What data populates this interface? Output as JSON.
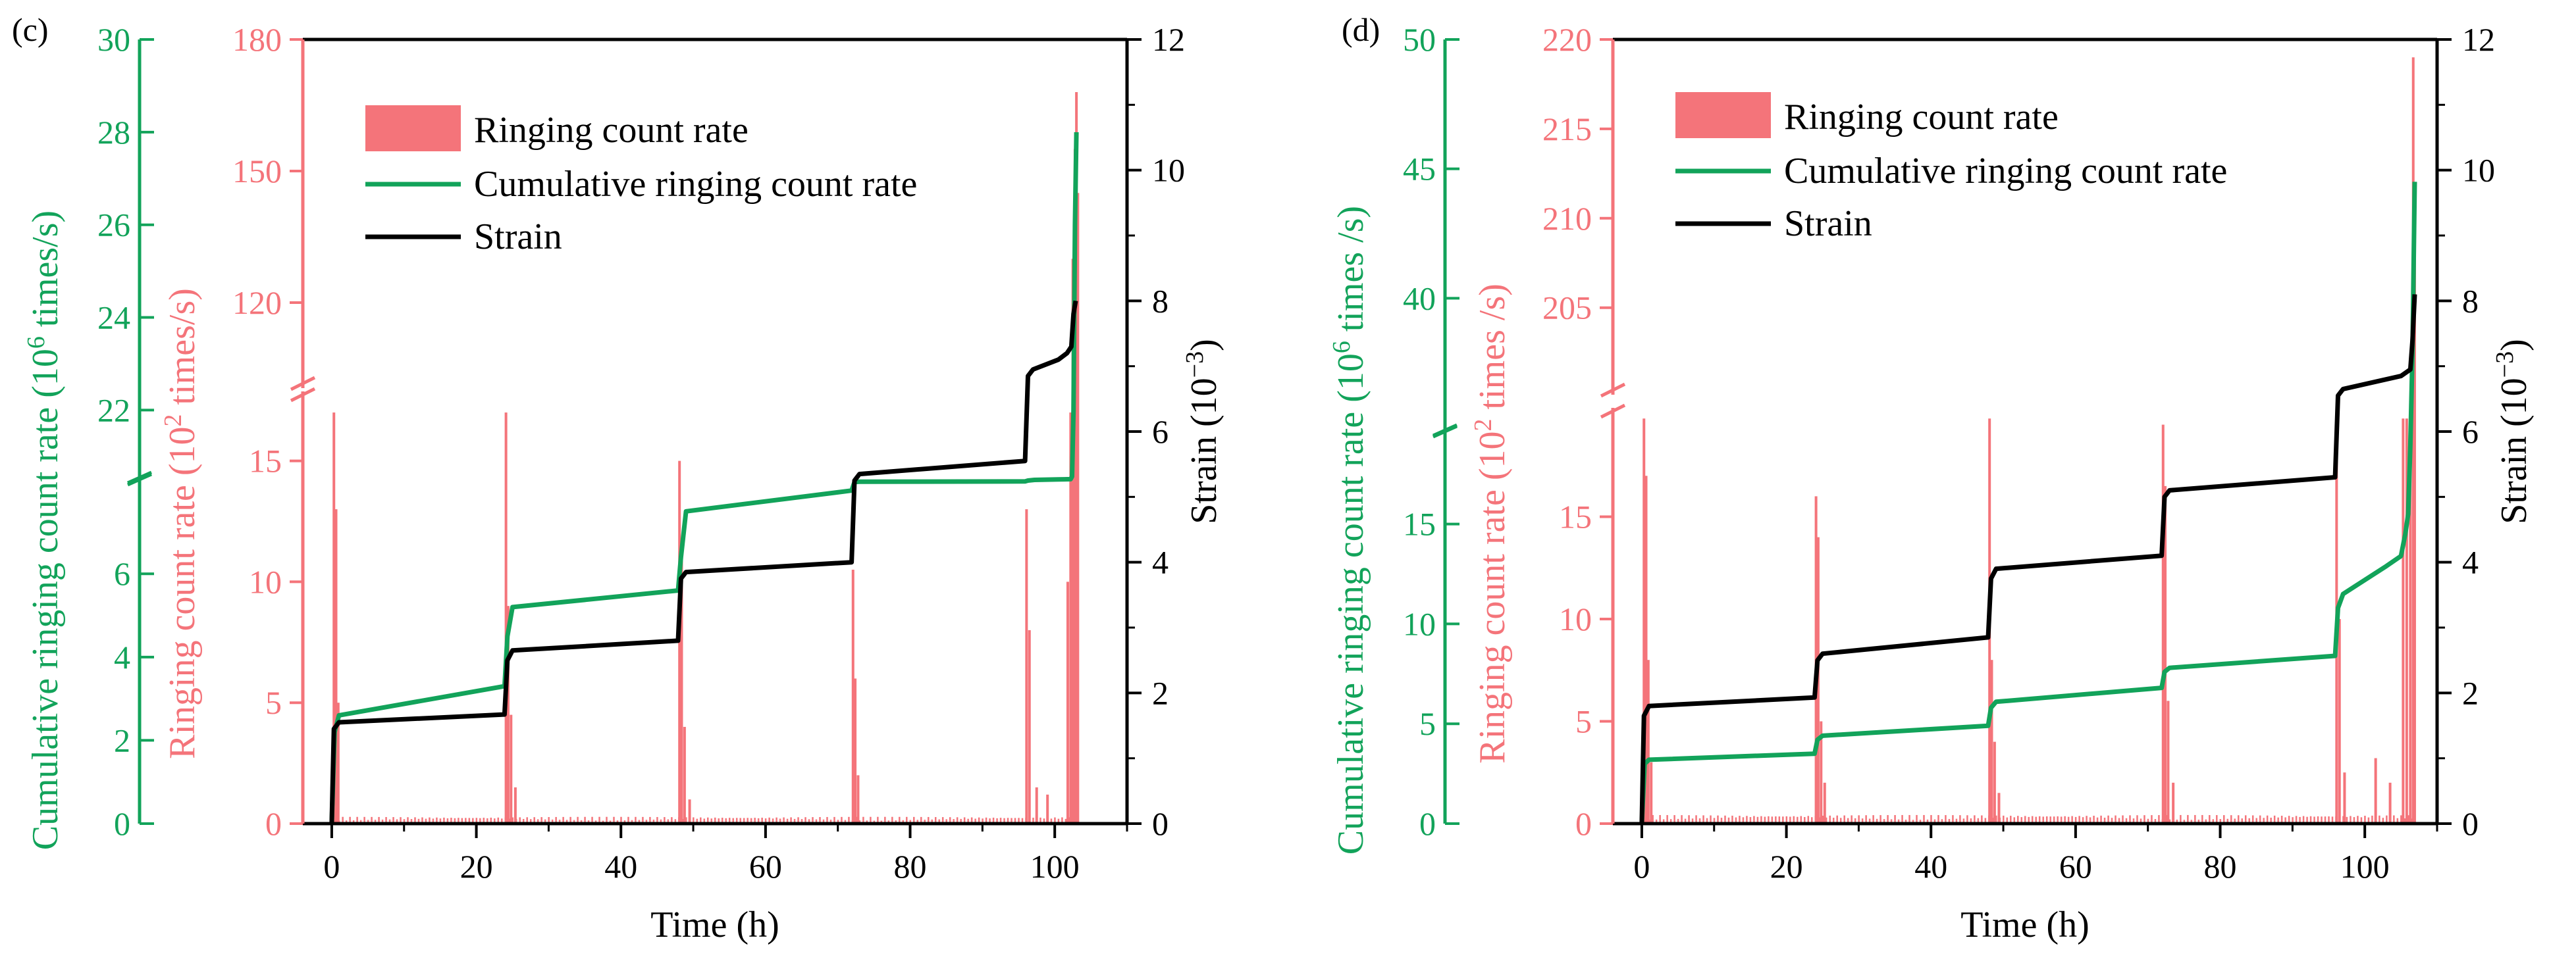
{
  "colors": {
    "bars": "#f4747a",
    "cumulative": "#12a35a",
    "strain": "#000000",
    "axis_black": "#000000"
  },
  "panels": [
    {
      "panel_label": "(c)",
      "xlabel": "Time (h)",
      "ylabel_strain": "Strain (10",
      "ylabel_strain_exp": "−3",
      "ylabel_strain_close": ")",
      "ylabel_ring_pre": "Ringing count rate (10",
      "ylabel_ring_exp": "2",
      "ylabel_ring_post": " times/s)",
      "ylabel_cum_pre": "Cumulative ringing count rate (10",
      "ylabel_cum_exp": "6",
      "ylabel_cum_post": " times/s)",
      "legend": [
        "Ringing count rate",
        "Cumulative ringing count rate",
        "Strain"
      ]
    },
    {
      "panel_label": "(d)",
      "xlabel": "Time (h)",
      "ylabel_strain": "Strain (10",
      "ylabel_strain_exp": "−3",
      "ylabel_strain_close": ")",
      "ylabel_ring_pre": "Ringing count rate (10",
      "ylabel_ring_exp": "2",
      "ylabel_ring_post": " times /s)",
      "ylabel_cum_pre": "Cumulative ringing count rate (10",
      "ylabel_cum_exp": "6",
      "ylabel_cum_post": " times /s)",
      "legend": [
        "Ringing count rate",
        "Cumulative ringing count rate",
        "Strain"
      ]
    }
  ],
  "chart_data": [
    {
      "type": "line",
      "title": "",
      "xlabel": "Time (h)",
      "xlim": [
        -4,
        110
      ],
      "xticks": [
        0,
        20,
        40,
        60,
        80,
        100
      ],
      "legend_position": "top-left",
      "axes": {
        "strain": {
          "label": "Strain (10−3)",
          "lim": [
            0,
            12
          ],
          "ticks": [
            0,
            2,
            4,
            6,
            8,
            10,
            12
          ],
          "side": "right"
        },
        "ringing_lower": {
          "label": "Ringing count rate (102 times/s)",
          "lim": [
            0,
            17.6
          ],
          "ticks": [
            0,
            5,
            10,
            15
          ],
          "side": "left"
        },
        "ringing_upper": {
          "lim": [
            102,
            180
          ],
          "ticks": [
            120,
            150,
            180
          ],
          "side": "left"
        },
        "cumulative_lower": {
          "label": "Cumulative ringing count rate (106 times/s)",
          "lim": [
            0,
            8.2
          ],
          "ticks": [
            0,
            2,
            4,
            6
          ],
          "side": "left"
        },
        "cumulative_upper": {
          "lim": [
            20.6,
            30
          ],
          "ticks": [
            22,
            24,
            26,
            28,
            30
          ],
          "side": "left"
        }
      },
      "series": [
        {
          "name": "Ringing count rate",
          "kind": "bar",
          "axis": "ringing",
          "baseline": 0.2,
          "spikes": [
            {
              "x": 0.3,
              "y": 17.0
            },
            {
              "x": 0.6,
              "y": 13.0
            },
            {
              "x": 0.9,
              "y": 5.0
            },
            {
              "x": 24.1,
              "y": 17.0
            },
            {
              "x": 24.4,
              "y": 9.0
            },
            {
              "x": 24.8,
              "y": 4.5
            },
            {
              "x": 25.4,
              "y": 1.5
            },
            {
              "x": 48.1,
              "y": 15.0
            },
            {
              "x": 48.4,
              "y": 11.0
            },
            {
              "x": 48.8,
              "y": 4.0
            },
            {
              "x": 49.5,
              "y": 1.0
            },
            {
              "x": 72.1,
              "y": 10.5
            },
            {
              "x": 72.4,
              "y": 6.0
            },
            {
              "x": 72.8,
              "y": 2.0
            },
            {
              "x": 96.1,
              "y": 13.0
            },
            {
              "x": 96.5,
              "y": 8.0
            },
            {
              "x": 97.5,
              "y": 1.5
            },
            {
              "x": 99.0,
              "y": 1.2
            },
            {
              "x": 101.8,
              "y": 10.0
            },
            {
              "x": 102.2,
              "y": 17.0
            },
            {
              "x": 102.5,
              "y": 130
            },
            {
              "x": 102.8,
              "y": 155
            },
            {
              "x": 103.0,
              "y": 168
            },
            {
              "x": 103.2,
              "y": 145
            }
          ]
        },
        {
          "name": "Cumulative ringing count rate",
          "kind": "line",
          "axis": "cumulative",
          "x": [
            0,
            0.4,
            1,
            23.9,
            24.3,
            25,
            47.9,
            48.3,
            49,
            71.9,
            72.3,
            73,
            95.9,
            96.3,
            97.2,
            100.5,
            101.3,
            102.2,
            102.4,
            102.6,
            102.8,
            103.0
          ],
          "y": [
            0,
            2.2,
            2.6,
            3.3,
            4.5,
            5.2,
            5.6,
            6.4,
            7.5,
            8.0,
            8.4,
            9.0,
            9.5,
            11.0,
            12.2,
            13.0,
            13.2,
            13.4,
            18.0,
            22.0,
            26.0,
            28.0
          ]
        },
        {
          "name": "Strain",
          "kind": "line",
          "axis": "strain",
          "x": [
            0,
            0.3,
            1,
            23.9,
            24.3,
            25,
            47.9,
            48.3,
            49,
            71.9,
            72.3,
            73,
            95.9,
            96.3,
            97,
            100.5,
            101.7,
            102.3,
            102.6,
            102.9
          ],
          "y": [
            0,
            1.45,
            1.55,
            1.67,
            2.5,
            2.65,
            2.8,
            3.75,
            3.85,
            4.0,
            5.25,
            5.35,
            5.55,
            6.85,
            6.95,
            7.1,
            7.2,
            7.3,
            7.8,
            8.0
          ]
        }
      ]
    },
    {
      "type": "line",
      "title": "",
      "xlabel": "Time (h)",
      "xlim": [
        -4,
        110
      ],
      "xticks": [
        0,
        20,
        40,
        60,
        80,
        100
      ],
      "legend_position": "top-left",
      "axes": {
        "strain": {
          "label": "Strain (10−3)",
          "lim": [
            0,
            12
          ],
          "ticks": [
            0,
            2,
            4,
            6,
            8,
            10,
            12
          ],
          "side": "right"
        },
        "ringing_lower": {
          "label": "Ringing count rate (102 times /s)",
          "lim": [
            0,
            20
          ],
          "ticks": [
            0,
            5,
            10,
            15
          ],
          "side": "left"
        },
        "ringing_upper": {
          "lim": [
            200.5,
            220
          ],
          "ticks": [
            205,
            210,
            215,
            220
          ],
          "side": "left"
        },
        "cumulative_lower": {
          "label": "Cumulative ringing count rate (106 times /s)",
          "lim": [
            0,
            19.5
          ],
          "ticks": [
            0,
            5,
            10,
            15
          ],
          "side": "left"
        },
        "cumulative_upper": {
          "lim": [
            35,
            50
          ],
          "ticks": [
            40,
            45,
            50
          ],
          "side": "left"
        }
      },
      "series": [
        {
          "name": "Ringing count rate",
          "kind": "bar",
          "axis": "ringing",
          "baseline": 0.3,
          "spikes": [
            {
              "x": 0.3,
              "y": 19.8
            },
            {
              "x": 0.6,
              "y": 17.0
            },
            {
              "x": 0.9,
              "y": 8.0
            },
            {
              "x": 1.3,
              "y": 3.0
            },
            {
              "x": 24.1,
              "y": 16.0
            },
            {
              "x": 24.4,
              "y": 14.0
            },
            {
              "x": 24.8,
              "y": 5.0
            },
            {
              "x": 25.3,
              "y": 2.0
            },
            {
              "x": 48.1,
              "y": 19.8
            },
            {
              "x": 48.4,
              "y": 8.0
            },
            {
              "x": 48.8,
              "y": 4.0
            },
            {
              "x": 49.4,
              "y": 1.5
            },
            {
              "x": 72.1,
              "y": 19.5
            },
            {
              "x": 72.4,
              "y": 16.5
            },
            {
              "x": 72.8,
              "y": 6.0
            },
            {
              "x": 73.5,
              "y": 2.0
            },
            {
              "x": 96.1,
              "y": 18.0
            },
            {
              "x": 96.5,
              "y": 10.0
            },
            {
              "x": 97.2,
              "y": 2.5
            },
            {
              "x": 101.5,
              "y": 3.2
            },
            {
              "x": 103.5,
              "y": 2.0
            },
            {
              "x": 105.3,
              "y": 19.8
            },
            {
              "x": 105.8,
              "y": 19.8
            },
            {
              "x": 106.3,
              "y": 19.8
            },
            {
              "x": 106.7,
              "y": 219
            },
            {
              "x": 106.9,
              "y": 212
            }
          ]
        },
        {
          "name": "Cumulative ringing count rate",
          "kind": "line",
          "axis": "cumulative",
          "x": [
            0,
            0.4,
            1,
            23.9,
            24.3,
            25,
            47.9,
            48.3,
            49,
            71.9,
            72.3,
            73,
            95.9,
            96.3,
            97,
            103,
            105.0,
            105.6,
            106.0,
            106.3,
            106.6,
            106.9
          ],
          "y": [
            0,
            3.0,
            3.2,
            3.5,
            4.2,
            4.4,
            4.9,
            5.8,
            6.1,
            6.8,
            7.6,
            7.8,
            8.4,
            10.8,
            11.5,
            12.9,
            13.4,
            14.5,
            15.5,
            19.0,
            38.0,
            44.5
          ]
        },
        {
          "name": "Strain",
          "kind": "line",
          "axis": "strain",
          "x": [
            0,
            0.3,
            1,
            23.9,
            24.3,
            25,
            47.9,
            48.3,
            49,
            71.9,
            72.3,
            73,
            95.9,
            96.3,
            97,
            105,
            106.3,
            106.6,
            106.9
          ],
          "y": [
            0,
            1.65,
            1.8,
            1.93,
            2.5,
            2.6,
            2.85,
            3.75,
            3.9,
            4.1,
            5.0,
            5.1,
            5.3,
            6.55,
            6.65,
            6.85,
            6.95,
            7.4,
            8.1
          ]
        }
      ]
    }
  ]
}
